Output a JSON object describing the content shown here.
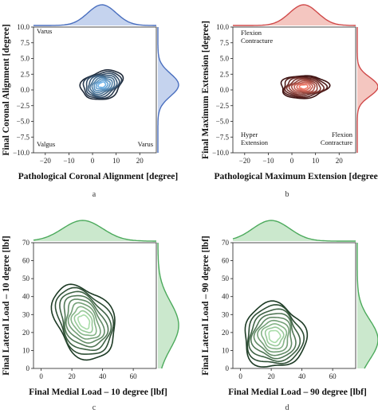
{
  "chart_data": [
    {
      "id": "a",
      "type": "kde-contour",
      "panel_label": "a",
      "xlabel": "Pathological Coronal Alignment [degree]",
      "ylabel": "Final Coronal Alignment [degree]",
      "xlim": [
        -25,
        27
      ],
      "ylim": [
        -10,
        10
      ],
      "xticks": [
        "−20",
        "−10",
        "0",
        "10",
        "20"
      ],
      "xtick_values": [
        -20,
        -10,
        0,
        10,
        20
      ],
      "yticks": [
        "10.0",
        "7.5",
        "5.0",
        "2.5",
        "0.0",
        "−2.5",
        "−5.0",
        "−7.5",
        "−10.0"
      ],
      "ytick_values": [
        10,
        7.5,
        5,
        2.5,
        0,
        -2.5,
        -5,
        -7.5,
        -10
      ],
      "annotations": [
        "Varus",
        "Valgus",
        "Varus"
      ],
      "center": [
        4,
        0.8
      ],
      "spread": [
        9,
        2.2
      ],
      "angle": 18,
      "color_dark": "#1f2a3a",
      "color_light": "#6fb3e8",
      "marginal_color": "#4a6fbf",
      "marginal_fill": "#c5d3ee",
      "marg_x": {
        "mean": 4,
        "sd": 6
      },
      "marg_y": {
        "mean": 0.8,
        "sd": 1.8
      }
    },
    {
      "id": "b",
      "type": "kde-contour",
      "panel_label": "b",
      "xlabel": "Pathological Maximum Extension [degree]",
      "ylabel": "Final Maximum Extension [degree]",
      "xlim": [
        -25,
        27
      ],
      "ylim": [
        -10,
        10
      ],
      "xticks": [
        "−20",
        "−10",
        "0",
        "10",
        "20"
      ],
      "xtick_values": [
        -20,
        -10,
        0,
        10,
        20
      ],
      "yticks": [
        "10.0",
        "7.5",
        "5.0",
        "2.5",
        "0.0",
        "−2.5",
        "−5.0",
        "−7.5",
        "−10.0"
      ],
      "ytick_values": [
        10,
        7.5,
        5,
        2.5,
        0,
        -2.5,
        -5,
        -7.5,
        -10
      ],
      "annotations": [
        "Flexion",
        "Contracture",
        "Hyper",
        "Extension",
        "Flexion",
        "Contracture"
      ],
      "center": [
        5,
        0.5
      ],
      "spread": [
        10,
        1.8
      ],
      "angle": 2,
      "color_dark": "#3a1010",
      "color_light": "#f07a6a",
      "marginal_color": "#d04a4a",
      "marginal_fill": "#f4c6c0",
      "marg_x": {
        "mean": 5,
        "sd": 6
      },
      "marg_y": {
        "mean": 0.5,
        "sd": 1.5
      }
    },
    {
      "id": "c",
      "type": "kde-contour",
      "panel_label": "c",
      "xlabel": "Final Medial Load – 10 degree [lbf]",
      "ylabel": "Final Lateral Load – 10 degree [lbf]",
      "xlim": [
        -5,
        75
      ],
      "ylim": [
        0,
        70
      ],
      "xticks": [
        "0",
        "20",
        "40",
        "60"
      ],
      "xtick_values": [
        0,
        20,
        40,
        60
      ],
      "yticks": [
        "70",
        "60",
        "50",
        "40",
        "30",
        "20",
        "10",
        "0"
      ],
      "ytick_values": [
        70,
        60,
        50,
        40,
        30,
        20,
        10,
        0
      ],
      "annotations": [],
      "center": [
        28,
        26
      ],
      "spread": [
        18,
        22
      ],
      "angle": 30,
      "color_dark": "#1c3a24",
      "color_light": "#a8dca8",
      "marginal_color": "#4caa5c",
      "marginal_fill": "#cbe8cd",
      "marg_x": {
        "mean": 27,
        "sd": 13
      },
      "marg_y": {
        "mean": 24,
        "sd": 13
      }
    },
    {
      "id": "d",
      "type": "kde-contour",
      "panel_label": "d",
      "xlabel": "Final Medial Load – 90 degree [lbf]",
      "ylabel": "Final Lateral Load – 90 degree [lbf]",
      "xlim": [
        -5,
        75
      ],
      "ylim": [
        0,
        70
      ],
      "xticks": [
        "0",
        "20",
        "40",
        "60"
      ],
      "xtick_values": [
        0,
        20,
        40,
        60
      ],
      "yticks": [
        "70",
        "60",
        "50",
        "40",
        "30",
        "20",
        "10",
        "0"
      ],
      "ytick_values": [
        70,
        60,
        50,
        40,
        30,
        20,
        10,
        0
      ],
      "annotations": [],
      "center": [
        22,
        18
      ],
      "spread": [
        20,
        18
      ],
      "angle": 15,
      "color_dark": "#1c3a24",
      "color_light": "#a8dca8",
      "marginal_color": "#4caa5c",
      "marginal_fill": "#cbe8cd",
      "marg_x": {
        "mean": 20,
        "sd": 12
      },
      "marg_y": {
        "mean": 16,
        "sd": 11
      }
    }
  ]
}
